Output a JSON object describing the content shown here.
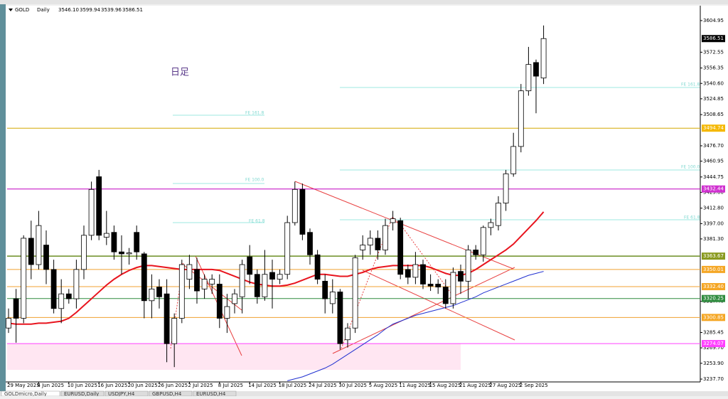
{
  "chart_data": {
    "type": "candlestick",
    "symbol": "GOLD",
    "period": "Daily",
    "ohlc_labels": [
      "3546.10",
      "3599.94",
      "3539.96",
      "3586.51"
    ],
    "annotation": "日足",
    "digits": 2,
    "ylim": [
      3234.8,
      3620.2
    ],
    "yticks": [
      3604.95,
      3572.55,
      3556.35,
      {
        "value": 3540.6,
        "label": "3540.60"
      },
      3524.85,
      3508.65,
      {
        "value": 3476.7,
        "label": "3476.70"
      },
      3460.95,
      3444.75,
      {
        "value": 3429,
        "label": "3429.00"
      },
      {
        "value": 3412.8,
        "label": "3412.80"
      },
      {
        "value": 3397,
        "label": "3397.00"
      },
      {
        "value": 3381.3,
        "label": "3381.30"
      },
      {
        "value": 3317.4,
        "label": "3317.40"
      },
      3285.45,
      {
        "value": 3269.7,
        "label": "3269.70"
      },
      {
        "value": 3253.9,
        "label": "3253.90"
      },
      {
        "value": 3237.7,
        "label": "3237.70"
      }
    ],
    "categories": [
      "29 May 2025",
      null,
      null,
      null,
      "4 Jun 2025",
      null,
      null,
      null,
      "10 Jun 2025",
      null,
      null,
      null,
      "16 Jun 2025",
      null,
      null,
      null,
      "20 Jun 2025",
      null,
      null,
      null,
      "26 Jun 2025",
      null,
      null,
      null,
      "2 Jul 2025",
      null,
      null,
      null,
      "8 Jul 2025",
      null,
      null,
      null,
      "14 Jul 2025",
      null,
      null,
      null,
      "18 Jul 2025",
      null,
      null,
      null,
      "24 Jul 2025",
      null,
      null,
      null,
      "30 Jul 2025",
      null,
      null,
      null,
      "5 Aug 2025",
      null,
      null,
      null,
      "11 Aug 2025",
      null,
      null,
      null,
      "15 Aug 2025",
      null,
      null,
      null,
      "21 Aug 2025",
      null,
      null,
      null,
      "27 Aug 2025",
      null,
      null,
      null,
      "2 Sep 2025",
      null,
      null,
      null
    ],
    "ohlc": [
      [
        3290,
        3310,
        3285,
        3300
      ],
      [
        3320,
        3330,
        3275,
        3300
      ],
      [
        3300,
        3385,
        3295,
        3382
      ],
      [
        3382,
        3400,
        3340,
        3355
      ],
      [
        3355,
        3410,
        3350,
        3395
      ],
      [
        3375,
        3390,
        3335,
        3350
      ],
      [
        3350,
        3360,
        3305,
        3310
      ],
      [
        3310,
        3340,
        3295,
        3325
      ],
      [
        3325,
        3330,
        3315,
        3320
      ],
      [
        3320,
        3360,
        3310,
        3350
      ],
      [
        3350,
        3395,
        3340,
        3385
      ],
      [
        3385,
        3440,
        3380,
        3432
      ],
      [
        3445,
        3452,
        3380,
        3385
      ],
      [
        3383,
        3410,
        3375,
        3387
      ],
      [
        3388,
        3395,
        3360,
        3368
      ],
      [
        3368,
        3385,
        3345,
        3366
      ],
      [
        3366,
        3372,
        3355,
        3367
      ],
      [
        3388,
        3395,
        3360,
        3368
      ],
      [
        3366,
        3368,
        3300,
        3318
      ],
      [
        3318,
        3345,
        3300,
        3330
      ],
      [
        3332,
        3340,
        3310,
        3322
      ],
      [
        3325,
        3340,
        3255,
        3274
      ],
      [
        3274,
        3305,
        3250,
        3300
      ],
      [
        3300,
        3360,
        3295,
        3355
      ],
      [
        3340,
        3365,
        3330,
        3355
      ],
      [
        3350,
        3362,
        3315,
        3328
      ],
      [
        3330,
        3345,
        3320,
        3340
      ],
      [
        3335,
        3345,
        3325,
        3340
      ],
      [
        3335,
        3345,
        3290,
        3300
      ],
      [
        3300,
        3325,
        3285,
        3312
      ],
      [
        3315,
        3330,
        3305,
        3325
      ],
      [
        3322,
        3360,
        3305,
        3355
      ],
      [
        3363,
        3375,
        3335,
        3345
      ],
      [
        3345,
        3350,
        3315,
        3322
      ],
      [
        3322,
        3370,
        3318,
        3345
      ],
      [
        3347,
        3360,
        3310,
        3340
      ],
      [
        3340,
        3350,
        3335,
        3345
      ],
      [
        3345,
        3405,
        3340,
        3398
      ],
      [
        3398,
        3440,
        3395,
        3432
      ],
      [
        3432,
        3438,
        3380,
        3386
      ],
      [
        3388,
        3392,
        3355,
        3365
      ],
      [
        3365,
        3370,
        3335,
        3340
      ],
      [
        3338,
        3345,
        3305,
        3320
      ],
      [
        3315,
        3340,
        3305,
        3327
      ],
      [
        3327,
        3330,
        3268,
        3274
      ],
      [
        3278,
        3295,
        3270,
        3290
      ],
      [
        3290,
        3365,
        3285,
        3362
      ],
      [
        3370,
        3385,
        3360,
        3375
      ],
      [
        3375,
        3390,
        3365,
        3382
      ],
      [
        3382,
        3390,
        3360,
        3370
      ],
      [
        3370,
        3402,
        3365,
        3395
      ],
      [
        3398,
        3410,
        3390,
        3402
      ],
      [
        3400,
        3403,
        3340,
        3345
      ],
      [
        3350,
        3355,
        3335,
        3342
      ],
      [
        3342,
        3368,
        3335,
        3355
      ],
      [
        3355,
        3360,
        3330,
        3335
      ],
      [
        3335,
        3345,
        3328,
        3333
      ],
      [
        3335,
        3340,
        3325,
        3332
      ],
      [
        3332,
        3340,
        3310,
        3315
      ],
      [
        3315,
        3352,
        3310,
        3347
      ],
      [
        3348,
        3355,
        3325,
        3338
      ],
      [
        3338,
        3375,
        3320,
        3370
      ],
      [
        3370,
        3375,
        3360,
        3365
      ],
      [
        3365,
        3395,
        3358,
        3393
      ],
      [
        3393,
        3402,
        3385,
        3398
      ],
      [
        3395,
        3425,
        3390,
        3418
      ],
      [
        3418,
        3452,
        3410,
        3448
      ],
      [
        3448,
        3490,
        3445,
        3476
      ],
      [
        3476,
        3540,
        3470,
        3533
      ],
      [
        3533,
        3578,
        3528,
        3560
      ],
      [
        3562,
        3565,
        3510,
        3548
      ],
      [
        3546.1,
        3599.94,
        3539.96,
        3586.51
      ]
    ],
    "up_color": "#ffffff",
    "down_color": "#000000",
    "series": [
      {
        "color": "#e8141e",
        "values": [
          3295,
          3294,
          3294,
          3294,
          3295,
          3295,
          3296,
          3297,
          3300,
          3306,
          3313,
          3320,
          3327,
          3334,
          3340,
          3345,
          3349,
          3352,
          3354,
          3354,
          3353,
          3352,
          3351,
          3350,
          3350,
          3350,
          3350,
          3350,
          3349,
          3346,
          3343,
          3340,
          3337,
          3335,
          3334,
          3333,
          3333,
          3334,
          3336,
          3339,
          3342,
          3345,
          3345,
          3344,
          3343,
          3343,
          3345,
          3347,
          3350,
          3352,
          3353,
          3354,
          3354,
          3354,
          3354,
          3354,
          3352,
          3349,
          3346,
          3344,
          3344,
          3346,
          3350,
          3355,
          3360,
          3365,
          3370,
          3376,
          3384,
          3392,
          3400,
          3409
        ]
      },
      {
        "color": "#2030d0",
        "values": [
          null,
          null,
          null,
          null,
          null,
          null,
          null,
          null,
          null,
          null,
          null,
          null,
          null,
          null,
          null,
          null,
          null,
          null,
          null,
          null,
          null,
          null,
          null,
          null,
          null,
          null,
          null,
          null,
          null,
          null,
          null,
          null,
          null,
          null,
          null,
          null,
          null,
          3236,
          3238,
          3240,
          3243,
          3246,
          3249,
          3253,
          3258,
          3263,
          3268,
          3273,
          3278,
          3283,
          3289,
          3294,
          3297,
          3300,
          3303,
          3305,
          3307,
          3309,
          3311,
          3313,
          3316,
          3319,
          3322,
          3326,
          3329,
          3332,
          3335,
          3338,
          3341,
          3344,
          3346,
          3348
        ]
      }
    ],
    "levels": [
      {
        "value": 3494.74,
        "color": "#d4a800",
        "label_color": "#f5b800",
        "text_color": "#ffffff"
      },
      {
        "value": 3432.44,
        "color": "#c000c0",
        "label_color": "#d030d0",
        "text_color": "#ffffff"
      },
      {
        "value": 3363.67,
        "color": "#6b8e23",
        "label_color": "#8a9a20",
        "text_color": "#ffffff"
      },
      {
        "value": 3350.01,
        "color": "#f0a030",
        "label_color": "#f5a623",
        "text_color": "#ffffff"
      },
      {
        "value": 3332.4,
        "color": "#f0a030",
        "label_color": "#f5a623",
        "text_color": "#ffffff",
        "label": "3332.40"
      },
      {
        "value": 3320.25,
        "color": "#2e8b3e",
        "label_color": "#2e8b3e",
        "text_color": "#ffffff"
      },
      {
        "value": 3300.85,
        "color": "#f0a030",
        "label_color": "#f5a623",
        "text_color": "#ffffff"
      },
      {
        "value": 3274.07,
        "color": "#ff40ff",
        "label_color": "#ff40ff",
        "text_color": "#ffffff"
      }
    ],
    "fib_labels": [
      "FE 161.8",
      "FE 100.0",
      "FE 61.8",
      "FE 161.8",
      "FE 100.0",
      "FE 61.8"
    ],
    "tabs": [
      "GOLDmicro,Daily",
      "EURUSD,Daily",
      "USDJPY,H4",
      "GBPUSD,H4",
      "EURUSD,H4"
    ]
  }
}
